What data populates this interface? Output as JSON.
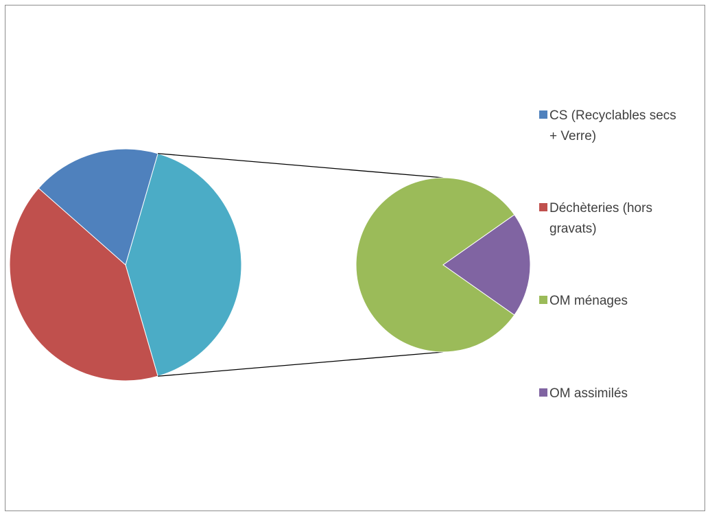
{
  "chart_data": {
    "type": "pie",
    "subtype": "pie-of-pie",
    "title": "",
    "slices": [
      {
        "label": "CS (Recyclables secs + Verre)",
        "label_lines": [
          "CS (Recyclables secs",
          "+ Verre)"
        ],
        "value": 18,
        "color": "#4F81BD",
        "chart": "main"
      },
      {
        "label": "Déchèteries (hors gravats)",
        "label_lines": [
          "Déchèteries (hors",
          "gravats)"
        ],
        "value": 41,
        "color": "#C0504D",
        "chart": "main"
      },
      {
        "label": "OM ménages",
        "label_lines": [
          "OM ménages"
        ],
        "value": 33,
        "color": "#9BBB59",
        "chart": "secondary"
      },
      {
        "label": "OM assimilés",
        "label_lines": [
          "OM assimilés"
        ],
        "value": 8,
        "color": "#8064A2",
        "chart": "secondary"
      }
    ],
    "other_slice": {
      "color": "#4BACC6"
    },
    "legend_position": "right",
    "connector_color": "#000000"
  }
}
